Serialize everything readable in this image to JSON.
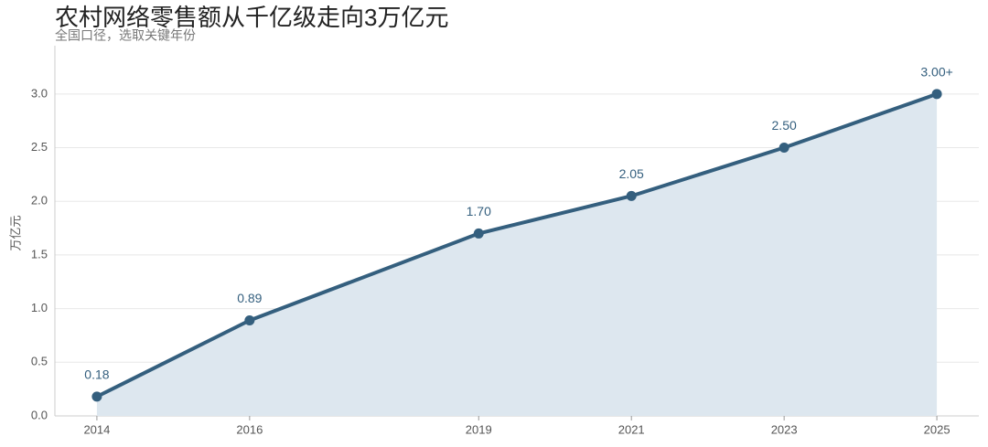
{
  "chart_data": {
    "type": "line",
    "title": "农村网络零售额从千亿级走向3万亿元",
    "subtitle": "全国口径，选取关键年份",
    "y_label": "万亿元",
    "x": [
      2014,
      2016,
      2019,
      2021,
      2023,
      2025
    ],
    "series": [
      {
        "name": "农村网络零售额",
        "color": "#345f7e",
        "fill": "#dde7ef",
        "values": [
          0.18,
          0.89,
          1.7,
          2.05,
          2.5,
          3.0
        ],
        "value_labels": [
          "0.18",
          "0.89",
          "1.70",
          "2.05",
          "2.50",
          "3.00+"
        ]
      }
    ],
    "xlim": [
      2013.45,
      2025.55
    ],
    "xticks": [
      2014,
      2016,
      2019,
      2021,
      2023,
      2025
    ],
    "ylim": [
      0,
      3.45
    ],
    "yticks": [
      {
        "value": 0,
        "label": "0.0"
      },
      0.5,
      {
        "value": 1,
        "label": "1.0"
      },
      1.5,
      {
        "value": 2,
        "label": "2.0"
      },
      2.5,
      {
        "value": 3,
        "label": "3.0"
      }
    ],
    "grid": true
  }
}
